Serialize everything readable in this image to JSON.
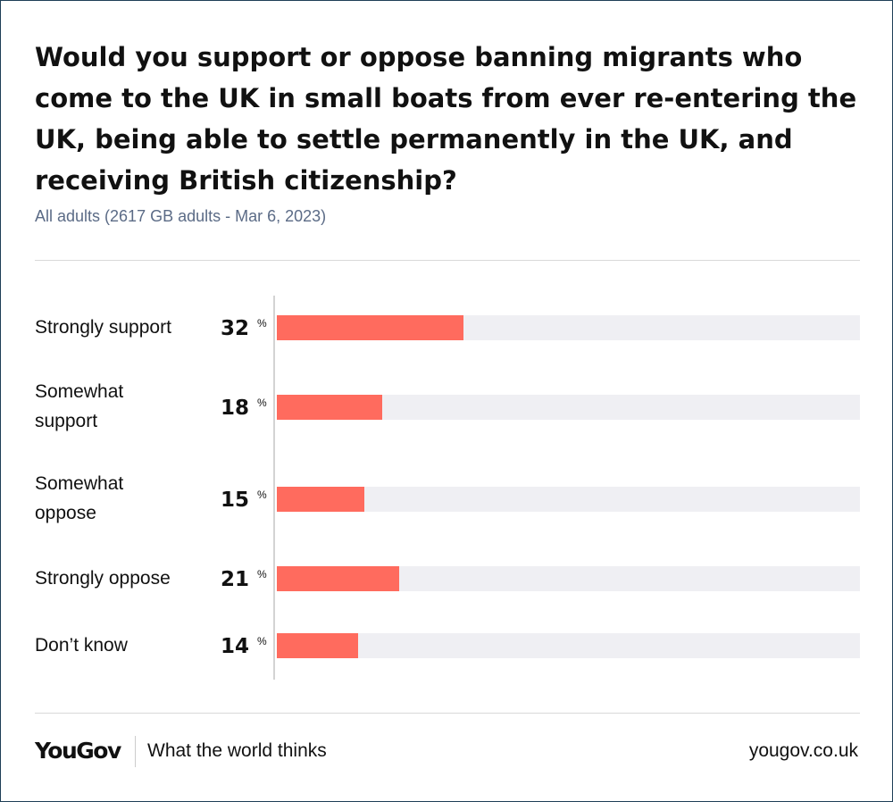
{
  "title": "Would you support or oppose banning migrants who come to the UK in small boats from ever re-entering the UK, being able to settle permanently in the UK, and receiving British citizenship?",
  "subtitle": "All adults (2617 GB adults - Mar 6, 2023)",
  "unit_symbol": "%",
  "footer": {
    "brand": "YouGov",
    "tagline": "What the world thinks",
    "site": "yougov.co.uk"
  },
  "colors": {
    "bar": "#ff6b5e",
    "track": "#efeff3",
    "subtitle": "#5b6b86"
  },
  "chart_data": {
    "type": "bar",
    "orientation": "horizontal",
    "categories": [
      "Strongly support",
      "Somewhat support",
      "Somewhat oppose",
      "Strongly oppose",
      "Don’t know"
    ],
    "values": [
      32,
      18,
      15,
      21,
      14
    ],
    "xlim": [
      0,
      100
    ],
    "title": "Would you support or oppose banning migrants who come to the UK in small boats from ever re-entering the UK, being able to settle permanently in the UK, and receiving British citizenship?",
    "subtitle": "All adults (2617 GB adults - Mar 6, 2023)",
    "grid": false
  }
}
